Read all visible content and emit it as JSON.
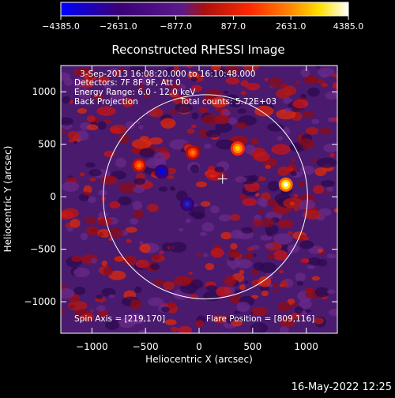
{
  "chart_data": {
    "type": "heatmap",
    "title": "Reconstructed RHESSI Image",
    "xlabel": "Heliocentric X (arcsec)",
    "ylabel": "Heliocentric Y (arcsec)",
    "xlim": [
      -1290,
      1290
    ],
    "ylim": [
      -1300,
      1250
    ],
    "x_ticks": [
      -1000,
      -500,
      0,
      500,
      1000
    ],
    "x_tick_labels": [
      "−1000",
      "−500",
      "0",
      "500",
      "1000"
    ],
    "y_ticks": [
      1000,
      500,
      0,
      -500,
      -1000
    ],
    "y_tick_labels": [
      "1000",
      "500",
      "0",
      "−500",
      "−1000"
    ],
    "colorbar": {
      "range": [
        -4385.0,
        4385.0
      ],
      "ticks": [
        -4385.0,
        -2631.0,
        -877.0,
        877.0,
        2631.0,
        4385.0
      ],
      "tick_labels": [
        "−4385.0",
        "−2631.0",
        "−877.0",
        "877.0",
        "2631.0",
        "4385.0"
      ],
      "colors": [
        "#0000ff",
        "#3a0078",
        "#5a1a8a",
        "#aa1010",
        "#ff2a00",
        "#ff8800",
        "#ffe000",
        "#ffffff"
      ]
    },
    "annotations": {
      "time_range": "3-Sep-2013 16:08:20.000 to 16:10:48.000",
      "detectors": "Detectors: 7F 8F 9F, Att 0",
      "energy": "Energy Range: 6.0 - 12.0 keV",
      "method": "Back Projection",
      "counts": "Total counts: 5.72E+03",
      "spin_axis": "Spin Axis = [219,170]",
      "flare_position": "Flare Position = [809,116]"
    },
    "solar_limb_radius_arcsec": 953,
    "spin_axis": [
      219,
      170
    ],
    "sources": [
      {
        "x": 809,
        "y": 116,
        "value": 4385
      },
      {
        "x": 360,
        "y": 460,
        "value": 3000
      },
      {
        "x": -60,
        "y": 420,
        "value": 2200
      },
      {
        "x": -560,
        "y": 300,
        "value": 1800
      },
      {
        "x": -350,
        "y": 240,
        "value": -4000
      },
      {
        "x": -110,
        "y": -70,
        "value": -3200
      }
    ]
  },
  "footer": {
    "timestamp": "16-May-2022 12:25"
  }
}
